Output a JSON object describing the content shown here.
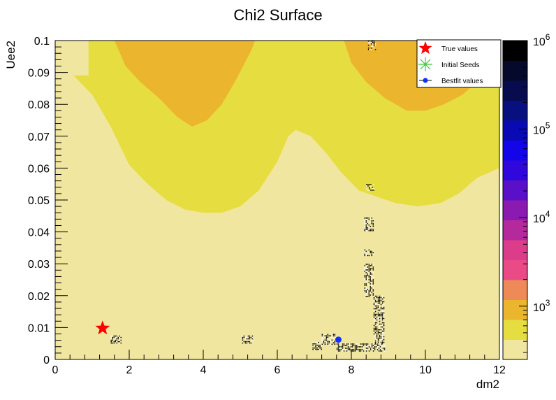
{
  "chart_data": {
    "type": "heatmap",
    "title": "Chi2 Surface",
    "xlabel": "dm2",
    "ylabel": "Uee2",
    "xlim": [
      0,
      12
    ],
    "ylim": [
      0,
      0.1
    ],
    "x_ticks": [
      "0",
      "2",
      "4",
      "6",
      "8",
      "10",
      "12"
    ],
    "y_ticks": [
      "0",
      "0.01",
      "0.02",
      "0.03",
      "0.04",
      "0.05",
      "0.06",
      "0.07",
      "0.08",
      "0.09",
      "0.1"
    ],
    "colorbar": {
      "scale": "log",
      "range": [
        250,
        1000000
      ],
      "tick_bases": [
        "10",
        "10",
        "10",
        "10"
      ],
      "tick_exponents": [
        "3",
        "4",
        "5",
        "6"
      ],
      "colors": [
        "#f1e6a0",
        "#e6de40",
        "#ecb52e",
        "#ee8a58",
        "#ea4a86",
        "#dc3d8a",
        "#b42a9c",
        "#8a1ab0",
        "#5a10c8",
        "#3008dc",
        "#1404e8",
        "#0a0ab4",
        "#081080",
        "#060c4e",
        "#050a2c",
        "#000000"
      ]
    },
    "regions": {
      "contour_low_level": [
        [
          0,
          0.0895
        ],
        [
          0.5,
          0.089
        ],
        [
          1.0,
          0.083
        ],
        [
          1.5,
          0.073
        ],
        [
          2.0,
          0.061
        ],
        [
          2.5,
          0.055
        ],
        [
          3.0,
          0.05
        ],
        [
          3.5,
          0.047
        ],
        [
          4.0,
          0.046
        ],
        [
          4.5,
          0.046
        ],
        [
          5.0,
          0.048
        ],
        [
          5.5,
          0.053
        ],
        [
          6.0,
          0.062
        ],
        [
          6.3,
          0.07
        ],
        [
          6.5,
          0.072
        ],
        [
          6.9,
          0.07
        ],
        [
          7.3,
          0.065
        ],
        [
          7.7,
          0.059
        ],
        [
          8.2,
          0.053
        ],
        [
          8.7,
          0.051
        ],
        [
          9.2,
          0.049
        ],
        [
          9.8,
          0.048
        ],
        [
          10.4,
          0.049
        ],
        [
          10.9,
          0.052
        ],
        [
          11.4,
          0.057
        ],
        [
          12.0,
          0.06
        ]
      ],
      "contour_high_level": [
        [
          1.6,
          0.1
        ],
        [
          1.9,
          0.092
        ],
        [
          2.3,
          0.087
        ],
        [
          2.8,
          0.082
        ],
        [
          3.3,
          0.076
        ],
        [
          3.7,
          0.073
        ],
        [
          4.1,
          0.075
        ],
        [
          4.5,
          0.08
        ],
        [
          4.9,
          0.088
        ],
        [
          5.3,
          0.097
        ],
        [
          5.4,
          0.1
        ],
        [
          7.8,
          0.1
        ],
        [
          8.0,
          0.093
        ],
        [
          8.4,
          0.087
        ],
        [
          8.9,
          0.082
        ],
        [
          9.5,
          0.078
        ],
        [
          10.0,
          0.078
        ],
        [
          10.5,
          0.08
        ],
        [
          11.0,
          0.083
        ],
        [
          11.3,
          0.086
        ],
        [
          11.45,
          0.1
        ]
      ]
    },
    "noisy_patches": [
      {
        "x": [
          1.5,
          1.8
        ],
        "y": [
          0.005,
          0.0075
        ]
      },
      {
        "x": [
          5.05,
          5.35
        ],
        "y": [
          0.005,
          0.0075
        ]
      },
      {
        "x": [
          6.95,
          7.2
        ],
        "y": [
          0.003,
          0.0055
        ]
      },
      {
        "x": [
          7.2,
          7.55
        ],
        "y": [
          0.0045,
          0.008
        ]
      },
      {
        "x": [
          7.6,
          8.9
        ],
        "y": [
          0.0025,
          0.005
        ]
      },
      {
        "x": [
          8.6,
          8.9
        ],
        "y": [
          0.005,
          0.02
        ]
      },
      {
        "x": [
          8.35,
          8.6
        ],
        "y": [
          0.0195,
          0.03
        ]
      },
      {
        "x": [
          8.35,
          8.6
        ],
        "y": [
          0.0325,
          0.0345
        ]
      },
      {
        "x": [
          8.35,
          8.6
        ],
        "y": [
          0.0405,
          0.0445
        ]
      },
      {
        "x": [
          8.4,
          8.6
        ],
        "y": [
          0.053,
          0.055
        ]
      },
      {
        "x": [
          8.45,
          8.65
        ],
        "y": [
          0.097,
          0.1
        ]
      }
    ],
    "series": [
      {
        "name": "True values",
        "marker": "star",
        "color": "#ff0000",
        "points": [
          [
            1.28,
            0.0098
          ]
        ]
      },
      {
        "name": "Initial Seeds",
        "marker": "asterisk",
        "color": "#3fc83f",
        "points": []
      },
      {
        "name": "Bestfit values",
        "marker": "circle",
        "color": "#1030ff",
        "points": [
          [
            7.65,
            0.0062
          ]
        ]
      }
    ],
    "legend_position": "top-right"
  }
}
